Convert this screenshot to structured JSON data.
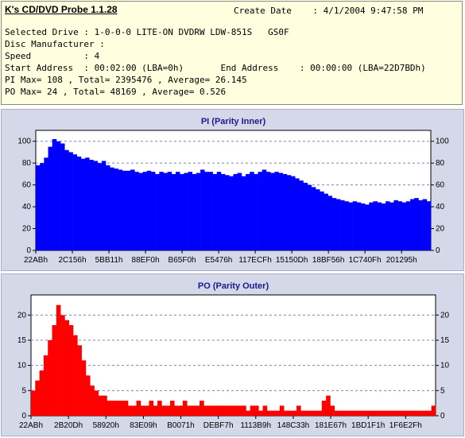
{
  "header": {
    "app_title": "K's CD/DVD Probe 1.1.28",
    "create_date_line": "Create Date    : 4/1/2004 9:47:58 PM",
    "lines": [
      "Selected Drive : 1-0-0-0 LITE-ON DVDRW LDW-851S   GS0F",
      "Disc Manufacturer :",
      "Speed          : 4",
      "Start Address  : 00:02:00 (LBA=0h)       End Address    : 00:00:00 (LBA=22D7BDh)",
      "PI Max= 108 , Total= 2395476 , Average= 26.145",
      "PO Max= 24 , Total= 48169 , Average= 0.526"
    ]
  },
  "colors": {
    "pi": "#0000ff",
    "po": "#ff0000",
    "panel": "#d4d8e8",
    "plot_bg": "#ffffff",
    "grid": "#7f7fbf",
    "title": "#1a1a8c"
  },
  "chart_data": [
    {
      "type": "bar",
      "title": "PI (Parity Inner)",
      "x_tick_labels": [
        "22ABh",
        "2C156h",
        "5BB11h",
        "88EF0h",
        "B65F0h",
        "E5476h",
        "117ECFh",
        "15150Dh",
        "18BF56h",
        "1C740Fh",
        "201295h"
      ],
      "ylim": [
        0,
        110
      ],
      "yticks": [
        0,
        20,
        40,
        60,
        80,
        100
      ],
      "grid": true,
      "series": [
        {
          "values": [
            78,
            80,
            85,
            95,
            102,
            100,
            98,
            92,
            90,
            88,
            86,
            84,
            85,
            83,
            82,
            80,
            82,
            78,
            76,
            75,
            74,
            73,
            73,
            74,
            72,
            71,
            72,
            73,
            72,
            70,
            72,
            71,
            72,
            70,
            72,
            70,
            71,
            72,
            70,
            71,
            74,
            72,
            72,
            70,
            72,
            70,
            69,
            68,
            70,
            71,
            68,
            70,
            72,
            70,
            72,
            74,
            72,
            71,
            72,
            71,
            70,
            69,
            68,
            66,
            64,
            62,
            60,
            58,
            56,
            54,
            52,
            50,
            48,
            47,
            46,
            45,
            44,
            45,
            44,
            43,
            42,
            44,
            45,
            44,
            43,
            45,
            44,
            46,
            45,
            44,
            45,
            47,
            48,
            46,
            47,
            45
          ]
        }
      ]
    },
    {
      "type": "bar",
      "title": "PO (Parity Outer)",
      "x_tick_labels": [
        "22ABh",
        "2B20Dh",
        "58920h",
        "83E09h",
        "B0071h",
        "DEBF7h",
        "1113B9h",
        "148C33h",
        "181E67h",
        "1BD1F1h",
        "1F6E2Fh"
      ],
      "ylim": [
        0,
        24
      ],
      "yticks": [
        0,
        5,
        10,
        15,
        20
      ],
      "grid": true,
      "series": [
        {
          "values": [
            5,
            7,
            9,
            12,
            15,
            18,
            22,
            20,
            19,
            18,
            16,
            14,
            11,
            8,
            6,
            5,
            4,
            4,
            3,
            3,
            3,
            3,
            3,
            2,
            2,
            3,
            2,
            2,
            3,
            2,
            3,
            2,
            2,
            3,
            2,
            2,
            3,
            2,
            2,
            2,
            3,
            2,
            2,
            2,
            2,
            2,
            2,
            2,
            2,
            2,
            2,
            1,
            2,
            2,
            1,
            2,
            1,
            1,
            1,
            2,
            1,
            1,
            1,
            2,
            1,
            1,
            1,
            1,
            1,
            3,
            4,
            2,
            1,
            1,
            1,
            1,
            1,
            1,
            1,
            1,
            1,
            1,
            1,
            1,
            1,
            1,
            1,
            1,
            1,
            1,
            1,
            1,
            1,
            1,
            1,
            2
          ]
        }
      ]
    }
  ]
}
